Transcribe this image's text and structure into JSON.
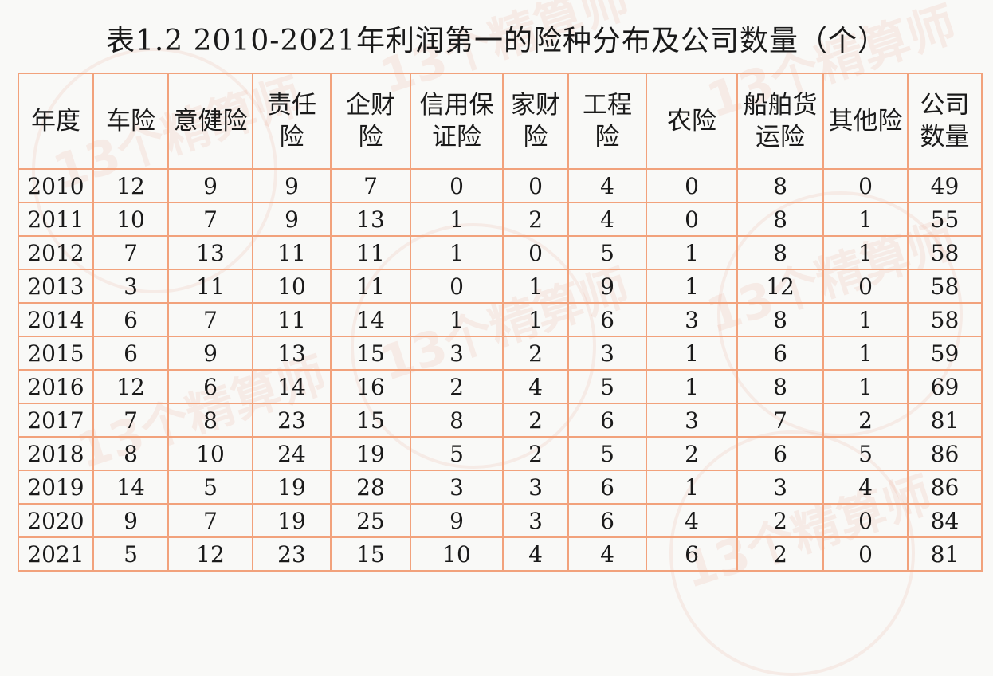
{
  "title": "表1.2  2010-2021年利润第一的险种分布及公司数量（个）",
  "table": {
    "headers": [
      [
        "年度"
      ],
      [
        "车险"
      ],
      [
        "意健险"
      ],
      [
        "责任",
        "险"
      ],
      [
        "企财",
        "险"
      ],
      [
        "信用保",
        "证险"
      ],
      [
        "家财",
        "险"
      ],
      [
        "工程",
        "险"
      ],
      [
        "农险"
      ],
      [
        "船舶货",
        "运险"
      ],
      [
        "其他险"
      ],
      [
        "公司",
        "数量"
      ]
    ],
    "rows": [
      [
        "2010",
        "12",
        "9",
        "9",
        "7",
        "0",
        "0",
        "4",
        "0",
        "8",
        "0",
        "49"
      ],
      [
        "2011",
        "10",
        "7",
        "9",
        "13",
        "1",
        "2",
        "4",
        "0",
        "8",
        "1",
        "55"
      ],
      [
        "2012",
        "7",
        "13",
        "11",
        "11",
        "1",
        "0",
        "5",
        "1",
        "8",
        "1",
        "58"
      ],
      [
        "2013",
        "3",
        "11",
        "10",
        "11",
        "0",
        "1",
        "9",
        "1",
        "12",
        "0",
        "58"
      ],
      [
        "2014",
        "6",
        "7",
        "11",
        "14",
        "1",
        "1",
        "6",
        "3",
        "8",
        "1",
        "58"
      ],
      [
        "2015",
        "6",
        "9",
        "13",
        "15",
        "3",
        "2",
        "3",
        "1",
        "6",
        "1",
        "59"
      ],
      [
        "2016",
        "12",
        "6",
        "14",
        "16",
        "2",
        "4",
        "5",
        "1",
        "8",
        "1",
        "69"
      ],
      [
        "2017",
        "7",
        "8",
        "23",
        "15",
        "8",
        "2",
        "6",
        "3",
        "7",
        "2",
        "81"
      ],
      [
        "2018",
        "8",
        "10",
        "24",
        "19",
        "5",
        "2",
        "5",
        "2",
        "6",
        "5",
        "86"
      ],
      [
        "2019",
        "14",
        "5",
        "19",
        "28",
        "3",
        "3",
        "6",
        "1",
        "3",
        "4",
        "86"
      ],
      [
        "2020",
        "9",
        "7",
        "19",
        "25",
        "9",
        "3",
        "6",
        "4",
        "2",
        "0",
        "84"
      ],
      [
        "2021",
        "5",
        "12",
        "23",
        "15",
        "10",
        "4",
        "4",
        "6",
        "2",
        "0",
        "81"
      ]
    ]
  },
  "watermark": "13个精算师",
  "colors": {
    "grid": "#f2a27c",
    "background": "#f9f9f7",
    "text": "#1a1a1a",
    "watermark": "#e6785a"
  }
}
